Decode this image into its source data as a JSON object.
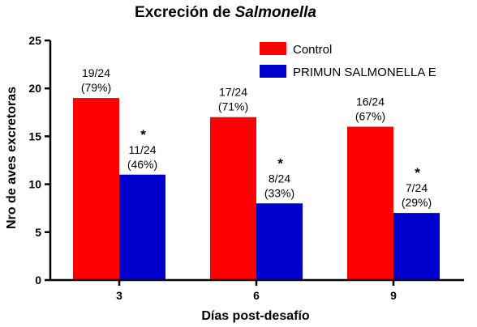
{
  "chart_data": {
    "type": "bar",
    "title": "Excreción de ",
    "title_italic": "Salmonella",
    "xlabel": "Días post-desafío",
    "ylabel": "Nro de aves excretoras",
    "ylim": [
      0,
      25
    ],
    "yticks": [
      0,
      5,
      10,
      15,
      20,
      25
    ],
    "categories": [
      "3",
      "6",
      "9"
    ],
    "legend_position": "top-right",
    "series": [
      {
        "name": "Control",
        "color": "#ff0000",
        "values": [
          19,
          17,
          16
        ],
        "labels": [
          [
            "19/24",
            "(79%)"
          ],
          [
            "17/24",
            "(71%)"
          ],
          [
            "16/24",
            "(67%)"
          ]
        ],
        "significance": [
          "",
          "",
          ""
        ]
      },
      {
        "name": "PRIMUN SALMONELLA E",
        "color": "#0000cc",
        "values": [
          11,
          8,
          7
        ],
        "labels": [
          [
            "11/24",
            "(46%)"
          ],
          [
            "8/24",
            "(33%)"
          ],
          [
            "7/24",
            "(29%)"
          ]
        ],
        "significance": [
          "*",
          "*",
          "*"
        ]
      }
    ]
  }
}
